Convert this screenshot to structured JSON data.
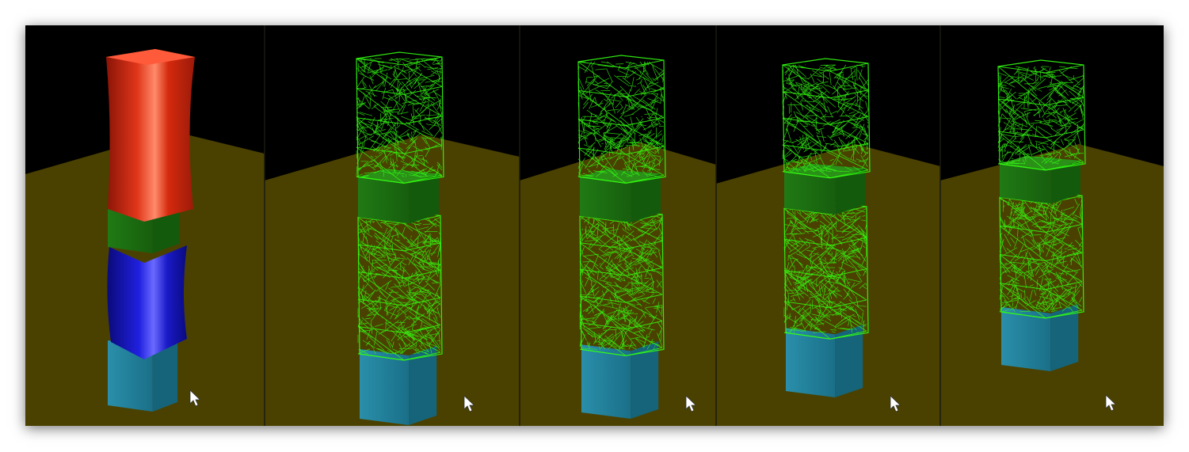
{
  "figure": {
    "background_color": "#000000",
    "floor_color": "#4a4100",
    "panel_count": 5,
    "panels": [
      {
        "id": "panel-1",
        "mode": "solid",
        "segments": [
          "red",
          "green",
          "blue",
          "cyan"
        ]
      },
      {
        "id": "panel-2",
        "mode": "wireframe",
        "segments": [
          "wireframe",
          "green",
          "wireframe",
          "cyan"
        ]
      },
      {
        "id": "panel-3",
        "mode": "wireframe",
        "segments": [
          "wireframe",
          "green",
          "wireframe",
          "cyan"
        ]
      },
      {
        "id": "panel-4",
        "mode": "wireframe",
        "segments": [
          "wireframe",
          "green",
          "wireframe",
          "cyan"
        ]
      },
      {
        "id": "panel-5",
        "mode": "wireframe",
        "segments": [
          "wireframe",
          "green",
          "wireframe",
          "cyan"
        ]
      }
    ],
    "colors": {
      "red": "#d42a0e",
      "green": "#1e7a12",
      "blue": "#1616c8",
      "cyan": "#1f7f9a",
      "wire": "#33ff11"
    },
    "icons": [
      "mouse-pointer-icon"
    ]
  }
}
